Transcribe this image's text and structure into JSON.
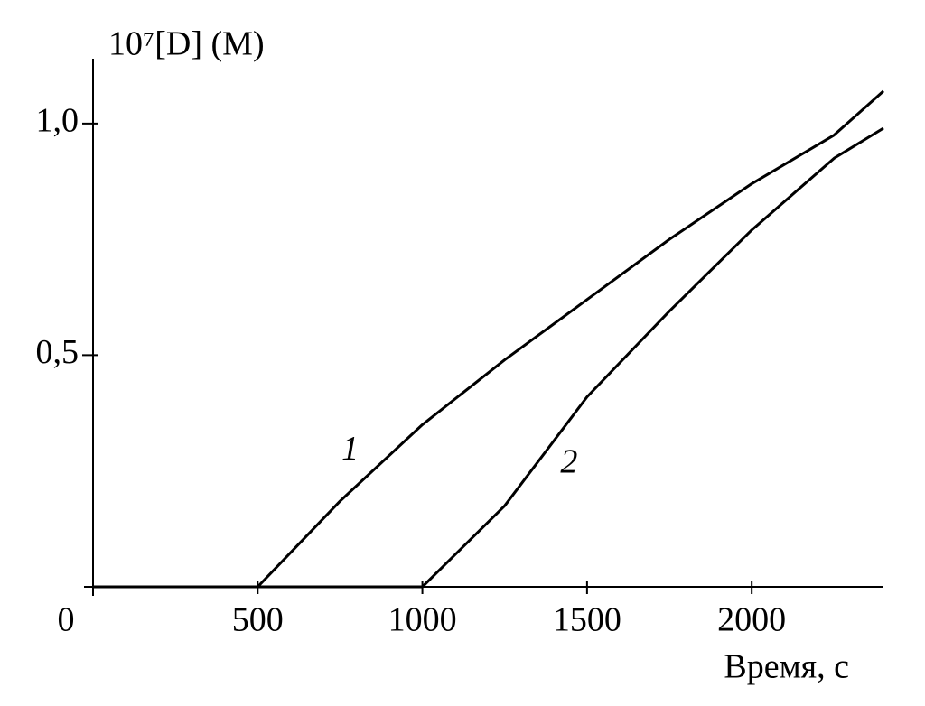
{
  "chart_data": {
    "type": "line",
    "y_label": "10⁷[D]  (M)",
    "x_label": "Время, с",
    "x": [
      0,
      500,
      750,
      1000,
      1250,
      1500,
      1750,
      2000,
      2250,
      2400
    ],
    "series": [
      {
        "name": "1",
        "color": "#000000",
        "values": [
          0,
          0,
          0.185,
          0.35,
          0.49,
          0.62,
          0.75,
          0.87,
          0.975,
          1.07
        ]
      },
      {
        "name": "2",
        "color": "#000000",
        "values": [
          0,
          0,
          0,
          0,
          0.175,
          0.41,
          0.595,
          0.77,
          0.925,
          0.99
        ]
      }
    ],
    "xlim": [
      0,
      2400
    ],
    "ylim": [
      0,
      1.14
    ],
    "xticks": [
      0,
      500,
      1000,
      1500,
      2000
    ],
    "yticks": [
      {
        "value": 0.5,
        "label": "0,5"
      },
      {
        "value": 1.0,
        "label": "1,0"
      }
    ]
  }
}
